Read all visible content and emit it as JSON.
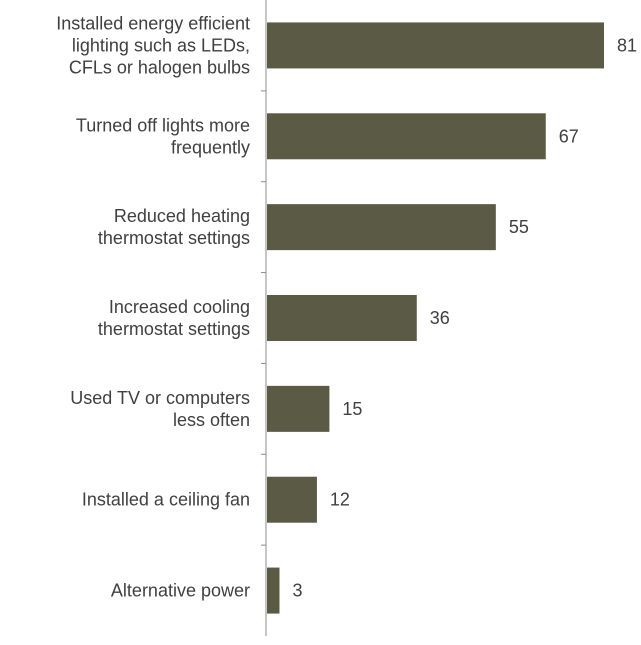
{
  "chart_data": {
    "type": "bar",
    "orientation": "horizontal",
    "title": "",
    "xlabel": "",
    "ylabel": "",
    "categories": [
      [
        "Installed energy efficient",
        "lighting such as LEDs,",
        "CFLs or halogen bulbs"
      ],
      [
        "Turned off lights more",
        "frequently"
      ],
      [
        "Reduced heating",
        "thermostat settings"
      ],
      [
        "Increased cooling",
        "thermostat settings"
      ],
      [
        "Used TV or computers",
        "less often"
      ],
      [
        "Installed a ceiling fan"
      ],
      [
        "Alternative power"
      ]
    ],
    "values": [
      81,
      67,
      55,
      36,
      15,
      12,
      3
    ],
    "data_labels": [
      "81",
      "67",
      "55",
      "36",
      "15",
      "12",
      "3"
    ],
    "xlim": [
      0,
      81
    ],
    "grid": false,
    "legend": "none",
    "colors": {
      "bar": "#5b5a45",
      "axis": "#8c8c8c",
      "text": "#404040"
    }
  }
}
